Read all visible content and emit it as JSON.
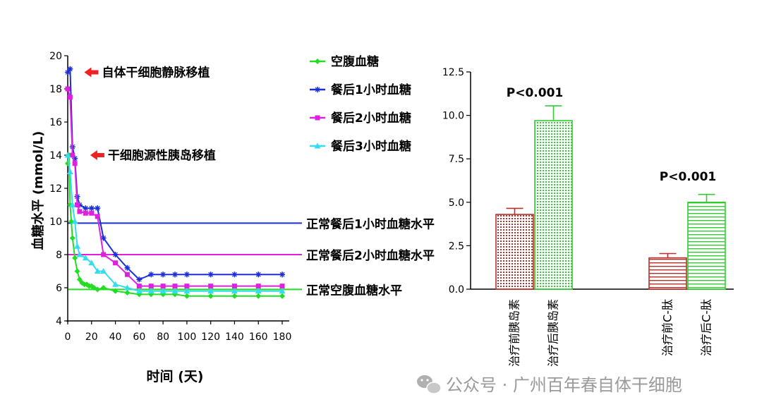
{
  "chart_data": [
    {
      "type": "line",
      "xlabel": "时间 (天)",
      "ylabel": "血糖水平 (mmol/L)",
      "xlim": [
        0,
        180
      ],
      "ylim": [
        4,
        20
      ],
      "xticks": [
        "0",
        "20",
        "40",
        "60",
        "80",
        "100",
        "120",
        "140",
        "160",
        "180"
      ],
      "yticks": [
        "4",
        "6",
        "8",
        "10",
        "12",
        "14",
        "16",
        "18",
        "20"
      ],
      "legend_position": "right",
      "series": [
        {
          "name": "空腹血糖",
          "color": "#22dd22",
          "marker": "diamond",
          "x": [
            0,
            1,
            2,
            3,
            4,
            6,
            8,
            10,
            12,
            14,
            16,
            18,
            20,
            22,
            25,
            30,
            40,
            50,
            60,
            70,
            80,
            90,
            100,
            120,
            140,
            160,
            180
          ],
          "y": [
            13.5,
            14.0,
            11.0,
            10.0,
            9.0,
            7.8,
            7.0,
            6.5,
            6.3,
            6.2,
            6.2,
            6.1,
            6.1,
            6.0,
            5.9,
            6.0,
            5.8,
            5.7,
            5.6,
            5.6,
            5.6,
            5.6,
            5.5,
            5.5,
            5.5,
            5.5,
            5.5
          ]
        },
        {
          "name": "餐后1小时血糖",
          "color": "#1a2fd8",
          "marker": "star",
          "x": [
            0,
            2,
            4,
            6,
            8,
            10,
            15,
            20,
            25,
            30,
            40,
            50,
            60,
            70,
            80,
            90,
            100,
            120,
            140,
            160,
            180
          ],
          "y": [
            19.0,
            19.2,
            14.5,
            13.8,
            11.5,
            11.0,
            10.8,
            10.8,
            10.8,
            9.0,
            8.0,
            7.2,
            6.5,
            6.8,
            6.8,
            6.8,
            6.8,
            6.8,
            6.8,
            6.8,
            6.8
          ]
        },
        {
          "name": "餐后2小时血糖",
          "color": "#e020e0",
          "marker": "square",
          "x": [
            0,
            2,
            4,
            6,
            8,
            10,
            15,
            20,
            25,
            30,
            40,
            50,
            60,
            70,
            80,
            90,
            100,
            120,
            140,
            160,
            180
          ],
          "y": [
            18.0,
            17.5,
            14.0,
            13.5,
            11.0,
            10.6,
            10.5,
            10.5,
            10.3,
            8.0,
            7.5,
            6.8,
            6.1,
            6.1,
            6.1,
            6.1,
            6.1,
            6.1,
            6.1,
            6.1,
            6.1
          ]
        },
        {
          "name": "餐后3小时血糖",
          "color": "#33ddee",
          "marker": "triangle",
          "x": [
            0,
            2,
            4,
            6,
            8,
            10,
            15,
            20,
            25,
            30,
            40,
            50,
            60,
            70,
            80,
            90,
            100,
            120,
            140,
            160,
            180
          ],
          "y": [
            14.0,
            13.0,
            11.0,
            10.0,
            8.5,
            8.0,
            7.8,
            7.5,
            7.0,
            7.0,
            6.2,
            6.0,
            5.8,
            5.8,
            5.8,
            5.8,
            5.8,
            5.8,
            5.8,
            5.8,
            5.8
          ]
        }
      ],
      "reference_lines": [
        {
          "label": "正常餐后1小时血糖水平",
          "y": 9.9,
          "color": "#1a2fd8"
        },
        {
          "label": "正常餐后2小时血糖水平",
          "y": 8.0,
          "color": "#e020e0"
        },
        {
          "label": "正常空腹血糖水平",
          "y": 5.9,
          "color": "#22dd22"
        }
      ],
      "annotations": [
        {
          "text": "自体干细胞静脉移植",
          "x": 5,
          "y": 19.0,
          "color": "#ee2222"
        },
        {
          "text": "干细胞源性胰岛移植",
          "x": 10,
          "y": 14.0,
          "color": "#ee2222"
        }
      ]
    },
    {
      "type": "bar",
      "ylim": [
        0,
        12.5
      ],
      "yticks": [
        "0.0",
        "2.5",
        "5.0",
        "7.5",
        "10.0",
        "12.5"
      ],
      "categories": [
        "治疗前胰岛素",
        "治疗后胰岛素",
        "治疗前C-肽",
        "治疗后C-肽"
      ],
      "values": [
        4.3,
        9.7,
        1.8,
        5.0
      ],
      "errors": [
        0.35,
        0.85,
        0.25,
        0.45
      ],
      "colors": [
        "#b8302a",
        "#33cc33",
        "#b8302a",
        "#33cc33"
      ],
      "patterns": [
        "dots",
        "dots",
        "hlines",
        "hlines"
      ],
      "annotations": [
        {
          "text": "P<0.001",
          "group": 0
        },
        {
          "text": "P<0.001",
          "group": 1
        }
      ]
    }
  ],
  "watermark": {
    "icon": "wechat-icon",
    "text": "公众号 · 广州百年春自体干细胞"
  }
}
